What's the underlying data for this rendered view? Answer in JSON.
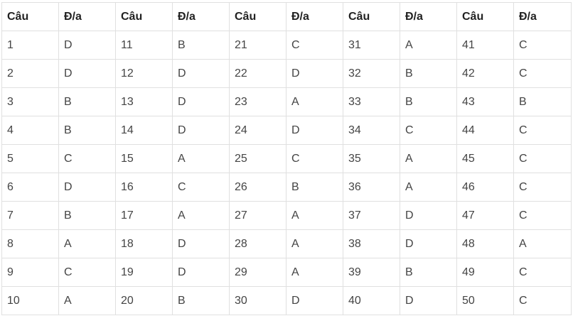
{
  "headers": [
    "Câu",
    "Đ/a",
    "Câu",
    "Đ/a",
    "Câu",
    "Đ/a",
    "Câu",
    "Đ/a",
    "Câu",
    "Đ/a"
  ],
  "rows": [
    [
      "1",
      "D",
      "11",
      "B",
      "21",
      "C",
      "31",
      "A",
      "41",
      "C"
    ],
    [
      "2",
      "D",
      "12",
      "D",
      "22",
      "D",
      "32",
      "B",
      "42",
      "C"
    ],
    [
      "3",
      "B",
      "13",
      "D",
      "23",
      "A",
      "33",
      "B",
      "43",
      "B"
    ],
    [
      "4",
      "B",
      "14",
      "D",
      "24",
      "D",
      "34",
      "C",
      "44",
      "C"
    ],
    [
      "5",
      "C",
      "15",
      "A",
      "25",
      "C",
      "35",
      "A",
      "45",
      "C"
    ],
    [
      "6",
      "D",
      "16",
      "C",
      "26",
      "B",
      "36",
      "A",
      "46",
      "C"
    ],
    [
      "7",
      "B",
      "17",
      "A",
      "27",
      "A",
      "37",
      "D",
      "47",
      "C"
    ],
    [
      "8",
      "A",
      "18",
      "D",
      "28",
      "A",
      "38",
      "D",
      "48",
      "A"
    ],
    [
      "9",
      "C",
      "19",
      "D",
      "29",
      "A",
      "39",
      "B",
      "49",
      "C"
    ],
    [
      "10",
      "A",
      "20",
      "B",
      "30",
      "D",
      "40",
      "D",
      "50",
      "C"
    ]
  ],
  "colors": {
    "border": "#e0e0e0",
    "text": "#444444",
    "header_text": "#222222"
  }
}
